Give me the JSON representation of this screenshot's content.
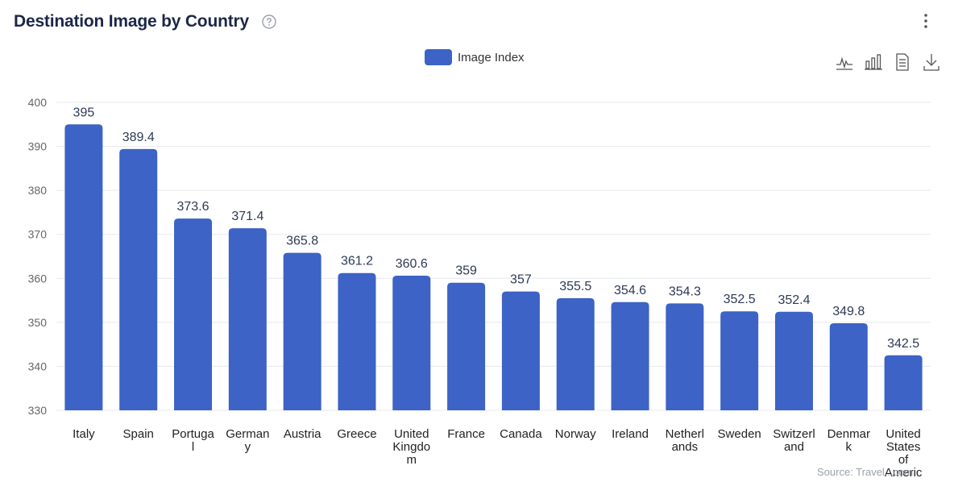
{
  "header": {
    "title": "Destination Image by Country",
    "help_icon": "question-circle-icon",
    "menu_icon": "more-vertical-icon"
  },
  "toolbar": {
    "icons": [
      "line-chart-icon",
      "bar-chart-icon",
      "document-icon",
      "download-icon"
    ]
  },
  "source": "Source: Travel...com",
  "colors": {
    "bar": "#3c63c5",
    "title": "#1b2749",
    "grid": "#e6e9ef",
    "axis_text": "#666666",
    "label_text": "#2d3a55"
  },
  "chart_data": {
    "type": "bar",
    "categories": [
      "Italy",
      "Spain",
      "Portugal",
      "Germany",
      "Austria",
      "Greece",
      "United Kingdom",
      "France",
      "Canada",
      "Norway",
      "Ireland",
      "Netherlands",
      "Sweden",
      "Switzerland",
      "Denmark",
      "United States of America"
    ],
    "category_label_lines": [
      [
        "Italy"
      ],
      [
        "Spain"
      ],
      [
        "Portuga",
        "l"
      ],
      [
        "German",
        "y"
      ],
      [
        "Austria"
      ],
      [
        "Greece"
      ],
      [
        "United",
        "Kingdo",
        "m"
      ],
      [
        "France"
      ],
      [
        "Canada"
      ],
      [
        "Norway"
      ],
      [
        "Ireland"
      ],
      [
        "Netherl",
        "ands"
      ],
      [
        "Sweden"
      ],
      [
        "Switzerl",
        "and"
      ],
      [
        "Denmar",
        "k"
      ],
      [
        "United",
        "States",
        "of",
        "Americ"
      ]
    ],
    "series": [
      {
        "name": "Image Index",
        "values": [
          395,
          389.4,
          373.6,
          371.4,
          365.8,
          361.2,
          360.6,
          359,
          357,
          355.5,
          354.6,
          354.3,
          352.5,
          352.4,
          349.8,
          342.5
        ]
      }
    ],
    "ylim": [
      330,
      400
    ],
    "yticks": [
      330,
      340,
      350,
      360,
      370,
      380,
      390,
      400
    ],
    "grid": true,
    "legend": "top-center",
    "data_labels": true
  }
}
